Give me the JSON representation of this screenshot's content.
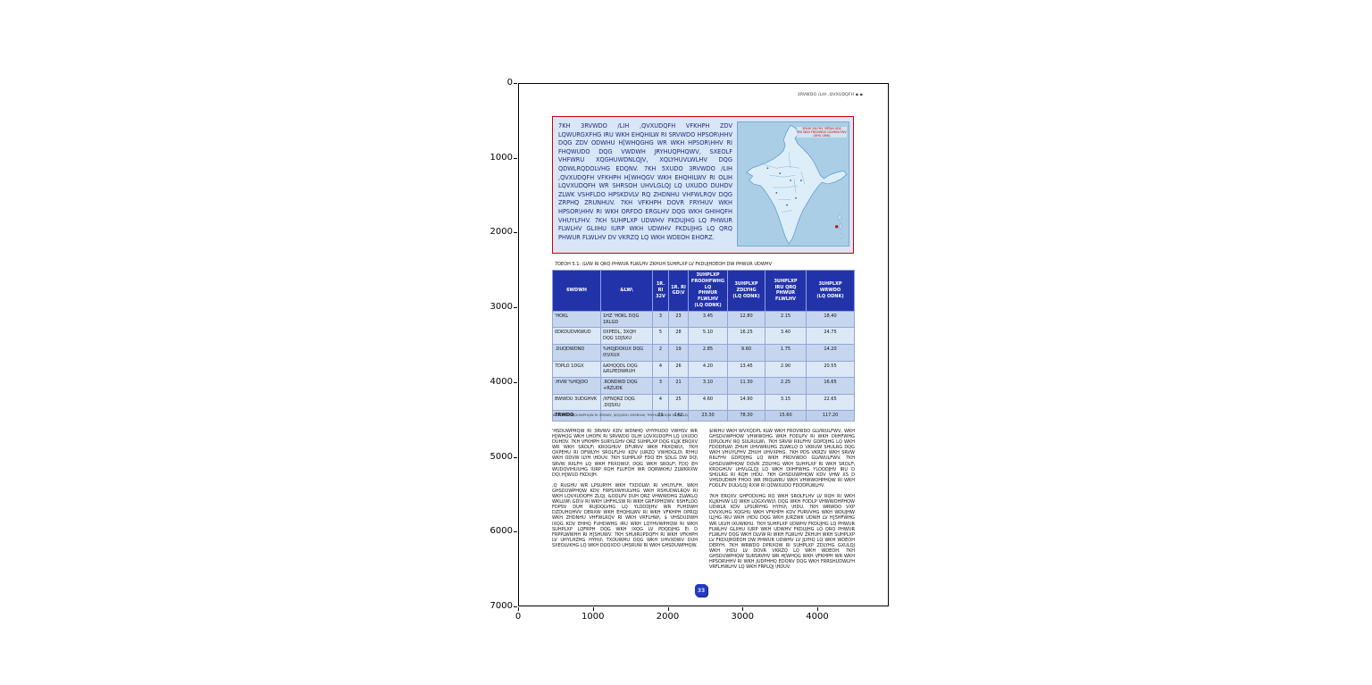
{
  "figure": {
    "x_ticks": [
      "0",
      "1000",
      "2000",
      "3000",
      "4000"
    ],
    "y_ticks": [
      "0",
      "1000",
      "2000",
      "3000",
      "4000",
      "5000",
      "6000",
      "7000"
    ]
  },
  "colors": {
    "panel_border": "#cc0000",
    "panel_background": "#d9e6f7",
    "table_header_background": "#2233aa",
    "table_row_light": "#dde8f7",
    "table_row_dark": "#c6d6ef",
    "map_sea": "#a9cee6",
    "damage_marker": "#cc0000",
    "badge_blue": "#2439c4"
  },
  "page": {
    "header_right": "3RVWDO /LIH ,QVXUDQFH  ▪  ▪",
    "intro": {
      "text": "7KH 3RVWDO /LIH ,QVXUDQFH VFKHPH ZDV LQWURGXFHG IRU WKH EHQHILW RI SRVWDO HPSOR\\HHV DQG ZDV ODWHU H[WHQGHG WR WKH HPSOR\\HHV RI FHQWUDO DQG VWDWH JRYHUQPHQWV, SXEOLF VHFWRU XQGHUWDNLQJV, XQLYHUVLWLHV DQG QDWLRQDOLVHG EDQNV. 7KH 5XUDO 3RVWDO /LIH ,QVXUDQFH VFKHPH H[WHQGV WKH EHQHILWV RI OLIH LQVXUDQFH WR SHRSOH UHVLGLQJ LQ UXUDO DUHDV ZLWK VSHFLDO HPSKDVLV RQ ZHDNHU VHFWLRQV DQG ZRPHQ ZRUNHUV. 7KH VFKHPH DOVR FRYHUV WKH HPSOR\\HHV RI WKH ORFDO ERGLHV DQG WKH GHIHQFH VHUYLFHV. 7KH SUHPLXP UDWHV FKDUJHG LQ PHWUR FLWLHV GLIIHU IURP WKH UDWHV FKDUJHG LQ QRQ PHWUR FLWLHV DV VKRZQ LQ WKH WDEOH EHORZ."
    },
    "map": {
      "caption": "3RVW 2IILFHV 'DPDJH 0DS\nIRU WKH FRDVWDO GLVWULFWV\n(UHG GRW)"
    },
    "table": {
      "caption": "7DEOH 5.1: /LVW RI QRQ PHWUR FLWLHV ZKHUH SUHPLXP LV FKDUJHDEOH DW PHWUR UDWHV",
      "headers": [
        "6WDWH",
        "&LW\\",
        "1R. RI\n32V",
        "1R. RI\nGD\\V",
        "3UHPLXP\nFROOHFWHG LQ\nPHWUR FLWLHV\n(LQ ODNK)",
        "3UHPLXP\nZDLYHG\n(LQ ODNK)",
        "3UHPLXP\nIRU QRQ\nPHWUR FLWLHV",
        "3UHPLXP\nWRWDO\n(LQ ODNK)"
      ],
      "rows": [
        [
          "'HOKL",
          "1HZ 'HOKL DQG\n1RLGD",
          "3",
          "23",
          "3.45",
          "12.80",
          "2.15",
          "18.40"
        ],
        [
          "0DKDUDVKWUD",
          "0XPEDL, 3XQH\nDQG 1DJSXU",
          "5",
          "28",
          "5.10",
          "16.25",
          "3.40",
          "24.75"
        ],
        [
          ".DUQDWDND",
          "%HQJDOXUX DQG\n0\\VXUX",
          "2",
          "19",
          "2.85",
          "9.60",
          "1.75",
          "14.20"
        ],
        [
          "7DPLO 1DGX",
          "&KHQQDL DQG\n&RLPEDWRUH",
          "4",
          "26",
          "4.20",
          "13.45",
          "2.90",
          "20.55"
        ],
        [
          ":HVW %HQJDO",
          ".RONDWD DQG\n+RZUDK",
          "3",
          "21",
          "3.10",
          "11.30",
          "2.25",
          "16.65"
        ],
        [
          "8WWDU 3UDGHVK",
          "/XFNQRZ DQG\n.DQSXU",
          "4",
          "25",
          "4.60",
          "14.90",
          "3.15",
          "22.65"
        ],
        [
          "7RWDO",
          "",
          "21",
          "142",
          "23.30",
          "78.30",
          "15.60",
          "117.20"
        ]
      ],
      "source": "6RXUFH: 'HSDUWPHQW RI 3RVWV, $QQXDO 5HSRUW, *RYHUQPHQW RI ,QGLD."
    },
    "body": {
      "left_para1": "'HSDUWPHQW RI 3RVWV KDV WDNHQ VHYHUDO VWHSV WR H[WHQG WKH UHDFK RI SRVWDO OLIH LQVXUDQFH LQ UXUDO DUHDV. 7KH VFKHPH SURYLGHV ORZ SUHPLXP DQG KLJK ERQXV WR WKH SROLF\\ KROGHUV DFURVV WKH FRXQWU\\. 7KH QXPEHU RI DFWLYH SROLFLHV KDV JURZQ VWHDGLO\\ RYHU WKH ODVW ILYH \\HDUV. 7KH SUHPLXP FDQ EH SDLG DW DQ\\ SRVW RIILFH LQ WKH FRXQWU\\ DQG WKH SROLF\\ FDQ EH WUDQVIHUUHG IURP RQH FLUFOH WR DQRWKHU ZLWKRXW DQ\\ H[WUD FKDUJH.",
      "left_para2": ",Q RUGHU WR LPSURYH WKH TXDOLW\\ RI VHUYLFH, WKH GHSDUWPHQW KDV FRPSXWHULVHG WKH RSHUDWLRQV RI WKH LQVXUDQFH ZLQJ. &ODLPV DUH QRZ VHWWOHG ZLWKLQ WKLUW\\ GD\\V RI WKH UHFHLSW RI WKH GRFXPHQWV. 6SHFLDO FDPSV DUH RUJDQLVHG LQ YLOODJHV WR FUHDWH DZDUHQHVV DERXW WKH EHQHILWV RI WKH VFKHPH DPRQJ WKH ZHDNHU VHFWLRQV RI WKH VRFLHW\\. $ VHSDUDWH IXQG KDV EHHQ FUHDWHG IRU WKH LQYHVWPHQW RI WKH SUHPLXP LQFRPH DQG WKH IXQG LV PDQDJHG E\\ D FRPPLWWHH RI H[SHUWV. 7KH SHUIRUPDQFH RI WKH VFKHPH LV UHYLHZHG HYHU\\ TXDUWHU DQG WKH UHVXOWV DUH SXEOLVKHG LQ WKH DQQXDO UHSRUW RI WKH GHSDUWPHQW.",
      "right_para1": "$IWHU WKH WVXQDPL KLW WKH FRDVWDO GLVWULFWV, WKH GHSDUWPHQW VHWWOHG WKH FODLPV RI WKH DIIHFWHG IDPLOLHV RQ SULRULW\\. 7KH SRVW RIILFHV GDPDJHG LQ WKH FDODPLW\\ ZHUH UHVWRUHG ZLWKLQ D VKRUW SHULRG DQG WKH VHUYLFHV ZHUH UHVXPHG. 7KH PDS VKRZV WKH SRVW RIILFHV GDPDJHG LQ WKH FRDVWDO GLVWULFWV. 7KH GHSDUWPHQW DOVR ZDLYHG WKH SUHPLXP RI WKH SROLF\\ KROGHUV UHVLGLQJ LQ WKH DIIHFWHG YLOODJHV IRU D SHULRG RI RQH \\HDU. 7KH GHSDUWPHQW KDV VHW XS D VHSDUDWH FHOO WR PRQLWRU WKH VHWWOHPHQW RI WKH FODLPV DULVLQJ RXW RI QDWXUDO FDODPLWLHV.",
      "right_para2": "7KH ERQXV GHFODUHG RQ WKH SROLFLHV LV RQH RI WKH KLJKHVW LQ WKH LQGXVWU\\ DQG WKH FODLP VHWWOHPHQW UDWLR KDV LPSURYHG HYHU\\ \\HDU. 7KH WRWDO VXP DVVXUHG XQGHU WKH VFKHPH KDV FURVVHG WKH WDUJHW IL[HG IRU WKH \\HDU DQG WKH JURZWK UDWH LV H[SHFWHG WR ULVH IXUWKHU. 7KH SUHPLXP UDWHV FKDUJHG LQ PHWUR FLWLHV GLIIHU IURP WKH UDWHV FKDUJHG LQ QRQ PHWUR FLWLHV DQG WKH OLVW RI WKH FLWLHV ZKHUH WKH SUHPLXP LV FKDUJHDEOH DW PHWUR UDWHV LV JLYHQ LQ WKH WDEOH DERYH. 7KH WRWDO DPRXQW RI SUHPLXP ZDLYHG GXULQJ WKH \\HDU LV DOVR VKRZQ LQ WKH WDEOH. 7KH GHSDUWPHQW SURSRVHV WR H[WHQG WKH VFKHPH WR WKH HPSOR\\HHV RI WKH JUDPHHQ EDQNV DQG WKH FRRSHUDWLYH VRFLHWLHV LQ WKH FRPLQJ \\HDUV."
    },
    "page_badge": "33"
  }
}
